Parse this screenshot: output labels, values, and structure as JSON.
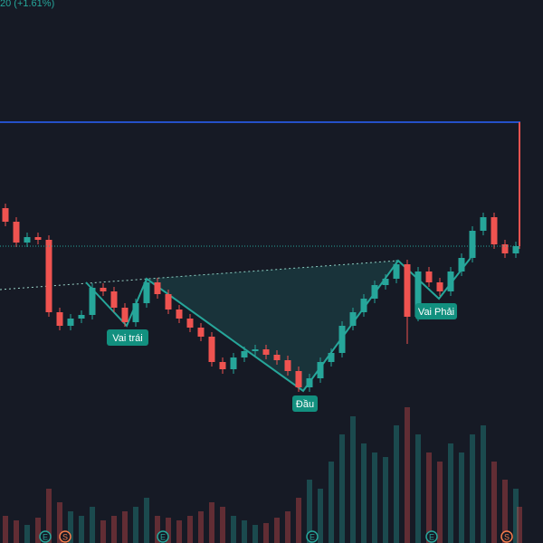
{
  "chart_data": {
    "type": "candlestick",
    "header": "20 (+1.61%)",
    "annotations": [
      "Vai trái",
      "Đầu",
      "Vai Phải"
    ],
    "up_color": "#26a69a",
    "down_color": "#ef5350",
    "ylim": [
      0,
      600
    ],
    "reference_line": 465,
    "open": [
      370,
      355,
      332,
      338,
      335,
      255,
      240,
      248,
      252,
      282,
      278,
      260,
      244,
      265,
      288,
      275,
      258,
      248,
      238,
      228,
      200,
      192,
      205,
      212,
      214,
      208,
      202,
      190,
      172,
      182,
      200,
      210,
      240,
      255,
      270,
      285,
      292,
      308,
      250,
      300,
      288,
      278,
      300,
      315,
      345,
      360,
      330,
      320,
      465
    ],
    "high": [
      375,
      360,
      343,
      343,
      340,
      260,
      253,
      257,
      287,
      287,
      283,
      265,
      270,
      293,
      293,
      280,
      263,
      253,
      243,
      233,
      205,
      210,
      217,
      219,
      219,
      213,
      207,
      195,
      187,
      205,
      215,
      245,
      260,
      275,
      290,
      297,
      313,
      313,
      305,
      305,
      293,
      305,
      320,
      350,
      365,
      365,
      335,
      333,
      465
    ],
    "low": [
      350,
      327,
      327,
      330,
      250,
      235,
      235,
      243,
      247,
      273,
      255,
      239,
      239,
      260,
      270,
      253,
      243,
      233,
      223,
      195,
      187,
      187,
      200,
      207,
      203,
      197,
      185,
      167,
      167,
      177,
      195,
      205,
      235,
      250,
      265,
      280,
      287,
      220,
      245,
      283,
      273,
      273,
      295,
      310,
      340,
      325,
      315,
      315,
      325
    ],
    "close": [
      355,
      332,
      338,
      335,
      255,
      240,
      248,
      252,
      282,
      278,
      260,
      244,
      265,
      288,
      275,
      258,
      248,
      238,
      228,
      200,
      192,
      205,
      212,
      214,
      208,
      202,
      190,
      172,
      182,
      200,
      210,
      240,
      255,
      270,
      285,
      292,
      308,
      250,
      300,
      288,
      278,
      300,
      315,
      345,
      360,
      330,
      320,
      328,
      328
    ],
    "volume": [
      30,
      25,
      20,
      28,
      60,
      45,
      35,
      30,
      40,
      25,
      30,
      35,
      40,
      50,
      30,
      28,
      25,
      30,
      35,
      45,
      40,
      30,
      25,
      20,
      22,
      28,
      35,
      50,
      70,
      60,
      90,
      120,
      140,
      110,
      100,
      95,
      130,
      150,
      120,
      100,
      90,
      110,
      100,
      120,
      130,
      90,
      70,
      60,
      40
    ],
    "events": [
      "E",
      "S",
      "E",
      "E",
      "E",
      "S"
    ]
  }
}
